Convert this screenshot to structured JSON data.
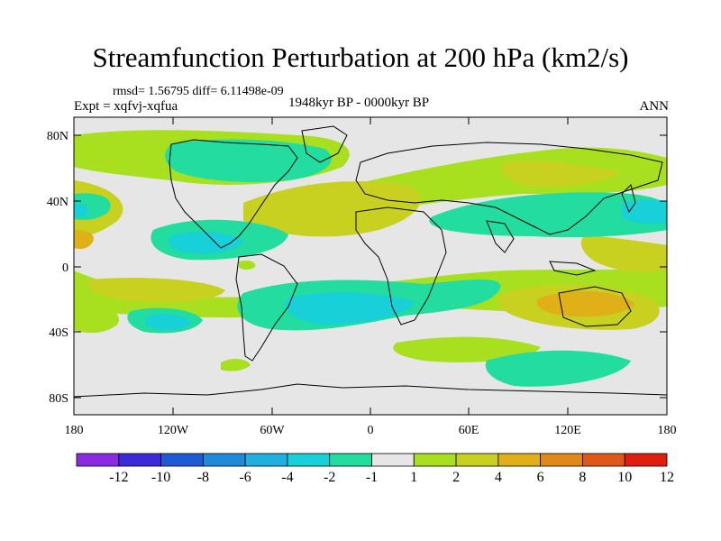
{
  "header": {
    "title": "Streamfunction Perturbation at 200 hPa (km2/s)",
    "stats": "rmsd= 1.56795 diff= 6.11498e-09",
    "experiment": "Expt = xqfvj-xqfua",
    "period": "1948kyr BP - 0000kyr BP",
    "season": "ANN"
  },
  "axes": {
    "lat_labels": [
      "80N",
      "40N",
      "0",
      "40S",
      "80S"
    ],
    "lon_labels": [
      "180",
      "120W",
      "60W",
      "0",
      "60E",
      "120E",
      "180"
    ]
  },
  "legend": {
    "labels": [
      "-12",
      "-10",
      "-8",
      "-6",
      "-4",
      "-2",
      "-1",
      "1",
      "2",
      "4",
      "6",
      "8",
      "10",
      "12"
    ],
    "colors": [
      "#8a2be2",
      "#3b2ad8",
      "#1e5ad6",
      "#1e8ad8",
      "#20b0e0",
      "#18d0d8",
      "#22dca0",
      "#e6e6e6",
      "#a8e020",
      "#c8d020",
      "#e0b018",
      "#e08818",
      "#e05818",
      "#e01e10"
    ]
  }
}
